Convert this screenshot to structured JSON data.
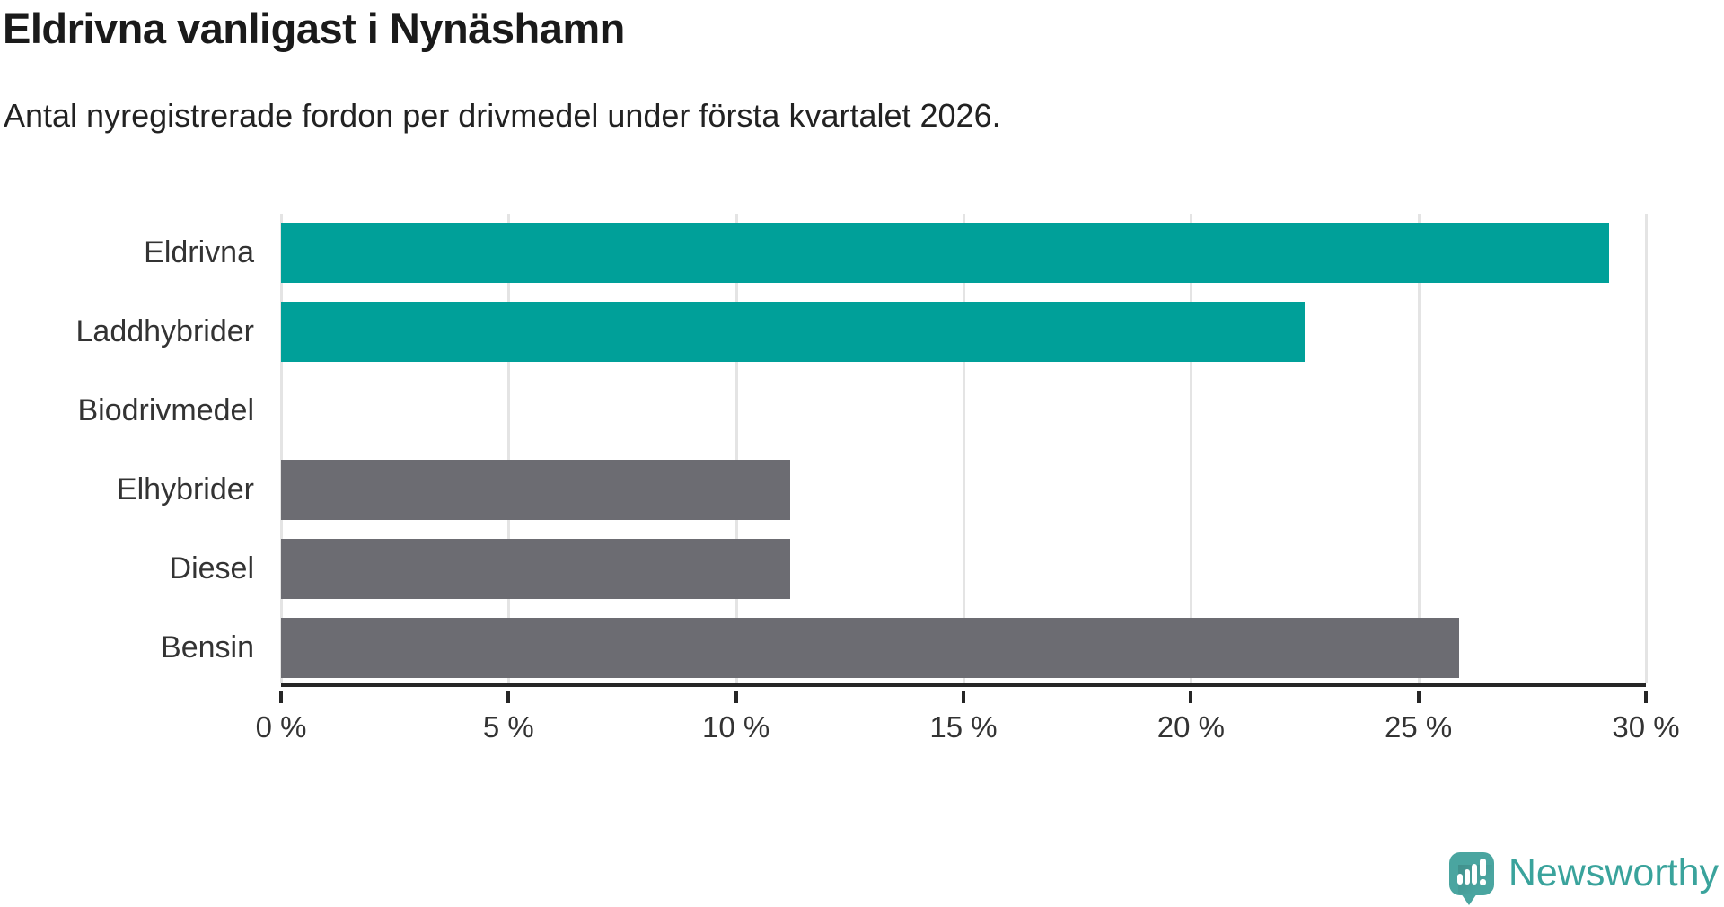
{
  "header": {
    "title": "Eldrivna vanligast i Nynäshamn",
    "subtitle": "Antal nyregistrerade fordon per drivmedel under första kvartalet 2026."
  },
  "chart_data": {
    "type": "bar",
    "orientation": "horizontal",
    "title": "Eldrivna vanligast i Nynäshamn",
    "subtitle": "Antal nyregistrerade fordon per drivmedel under första kvartalet 2026.",
    "categories": [
      "Eldrivna",
      "Laddhybrider",
      "Biodrivmedel",
      "Elhybrider",
      "Diesel",
      "Bensin"
    ],
    "values": [
      29.2,
      22.5,
      0,
      11.2,
      11.2,
      25.9
    ],
    "unit": "%",
    "xlim": [
      0,
      30
    ],
    "x_ticks": [
      "0 %",
      "5 %",
      "10 %",
      "15 %",
      "20 %",
      "25 %",
      "30 %"
    ],
    "bar_colors": [
      "#00a099",
      "#00a099",
      "#6c6c72",
      "#6c6c72",
      "#6c6c72",
      "#6c6c72"
    ],
    "grid": true,
    "legend": "none"
  },
  "colors": {
    "highlight_teal": "#00a099",
    "neutral_gray": "#6c6c72",
    "axis": "#262626",
    "gridline": "#e4e4e4",
    "text": "#333333",
    "logo_teal": "#4aa5a0",
    "logo_text_teal": "#3aa39c"
  },
  "footer": {
    "brand": "Newsworthy",
    "logo_icon": "newsworthy-speech-bubble-chart-icon"
  }
}
